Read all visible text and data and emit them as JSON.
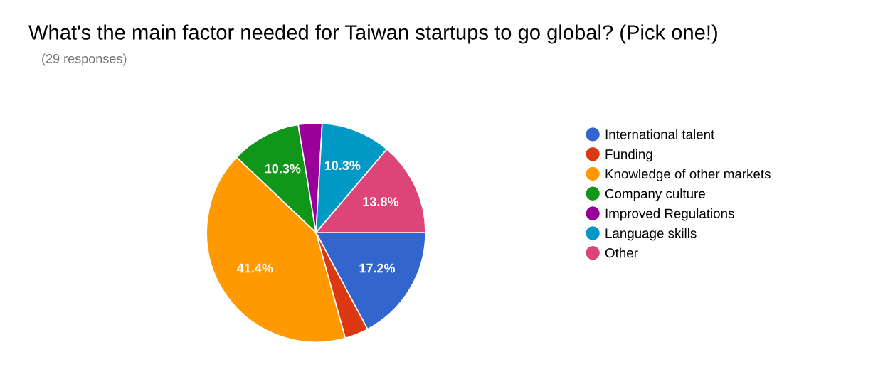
{
  "chart_data": {
    "type": "pie",
    "title": "What's the main factor needed for Taiwan startups to go global? (Pick one!)",
    "subtitle": "(29 responses)",
    "categories": [
      "International talent",
      "Funding",
      "Knowledge of other markets",
      "Company culture",
      "Improved Regulations",
      "Language skills",
      "Other"
    ],
    "values": [
      17.2,
      3.5,
      41.4,
      10.3,
      3.5,
      10.3,
      13.8
    ],
    "value_labels": [
      "17.2%",
      null,
      "41.4%",
      "10.3%",
      null,
      "10.3%",
      "13.8%"
    ],
    "colors": [
      "#3366cc",
      "#dc3912",
      "#ff9900",
      "#109618",
      "#990099",
      "#0099c6",
      "#dd4477"
    ],
    "legend": "right"
  }
}
